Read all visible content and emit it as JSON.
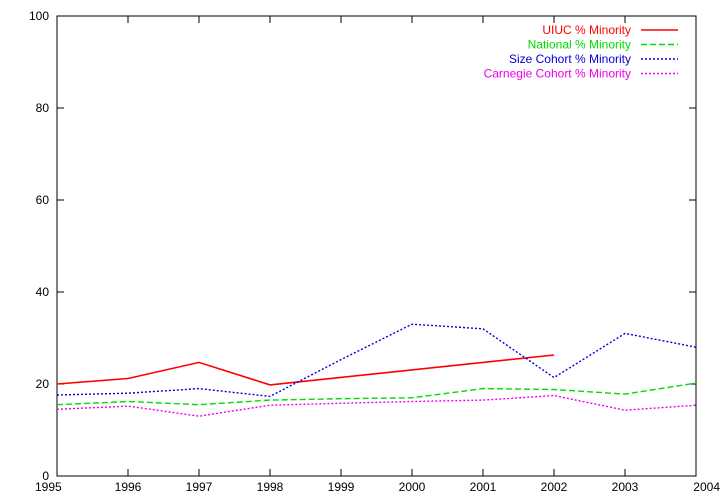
{
  "chart_data": {
    "type": "line",
    "title": "",
    "xlabel": "",
    "ylabel": "",
    "xlim": [
      1995,
      2004
    ],
    "ylim": [
      0,
      100
    ],
    "xticks": [
      "1995",
      "1996",
      "1997",
      "1998",
      "1999",
      "2000",
      "2001",
      "2002",
      "2003",
      "2004"
    ],
    "yticks": [
      "0",
      "20",
      "40",
      "60",
      "80",
      "100"
    ],
    "grid": false,
    "legend_position": "top-right",
    "series": [
      {
        "name": "UIUC % Minority",
        "color": "#ff0000",
        "style": "solid",
        "x": [
          1995,
          1996,
          1997,
          1998,
          2002
        ],
        "y": [
          20.0,
          21.2,
          24.7,
          19.8,
          26.3
        ]
      },
      {
        "name": "National % Minority",
        "color": "#00dd00",
        "style": "dashed",
        "x": [
          1995,
          1996,
          1997,
          1998,
          1999,
          2000,
          2001,
          2002,
          2003,
          2004
        ],
        "y": [
          15.5,
          16.2,
          15.5,
          16.5,
          16.8,
          17.0,
          19.0,
          18.8,
          17.8,
          20.2
        ]
      },
      {
        "name": "Size Cohort % Minority",
        "color": "#0000dd",
        "style": "dotted",
        "x": [
          1995,
          1996,
          1997,
          1998,
          1999,
          2000,
          2001,
          2002,
          2003,
          2004
        ],
        "y": [
          17.6,
          18.0,
          19.0,
          17.3,
          25.3,
          33.0,
          32.0,
          21.4,
          31.0,
          28.0
        ]
      },
      {
        "name": "Carnegie Cohort % Minority",
        "color": "#ee00ee",
        "style": "dotted",
        "x": [
          1995,
          1996,
          1997,
          1998,
          1999,
          2000,
          2001,
          2002,
          2003,
          2004
        ],
        "y": [
          14.5,
          15.2,
          13.0,
          15.4,
          15.8,
          16.2,
          16.5,
          17.5,
          14.3,
          15.4
        ]
      }
    ]
  }
}
